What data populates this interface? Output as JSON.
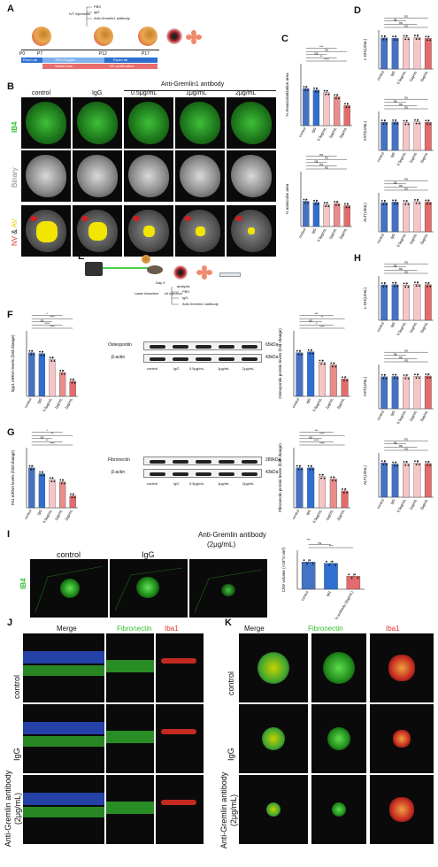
{
  "panels": {
    "A": "A",
    "B": "B",
    "C": "C",
    "D": "D",
    "E": "E",
    "F": "F",
    "G": "G",
    "H": "H",
    "I": "I",
    "J": "J",
    "K": "K"
  },
  "panelA": {
    "injections": [
      "PBS",
      "IgG",
      "Anti-Gremlin1 antibody"
    ],
    "ivt": "IVT injections",
    "days": [
      "P0",
      "P7",
      "P12",
      "P17"
    ],
    "top_bar": [
      "Room air",
      "75% Oxygen",
      "Room air"
    ],
    "bottom_bar": [
      "Vessel loss",
      "NV proliferation"
    ]
  },
  "panelB": {
    "antibody_header": "Anti-Gremlin1 antibody",
    "columns": [
      "control",
      "IgG",
      "0.5μg/mL",
      "1μg/mL",
      "2μg/mL"
    ],
    "rows": {
      "ib4": "IB4",
      "binary": "Binary",
      "nv": "NV",
      "amp": " & ",
      "av": "AV"
    }
  },
  "panelC": {
    "chart1_ylabel": "% revascularization area",
    "chart2_ylabel": "% avascular area",
    "sig1": [
      "****",
      "**",
      "ns",
      "ns",
      "***"
    ],
    "sig2": [
      "ns",
      "ns",
      "ns",
      "ns",
      "ns"
    ]
  },
  "panelD": {
    "ylabels": [
      "L-DH(U/mL)",
      "AST(U/mL)",
      "ALT(U/mL)"
    ],
    "ns": "ns"
  },
  "panelE": {
    "day0": "Day 0",
    "day7": "Day 7",
    "analysis": "analysis",
    "laser": "Laser induction",
    "ivt": "ivt injection",
    "pbs": "PBS",
    "igg": "IgG",
    "anti": "Anti-Gremlin1 antibody"
  },
  "panelF": {
    "ylabel": "Spp1 mRNA levels (fold change)",
    "sig": [
      "****",
      "****",
      "ns",
      "****",
      "*"
    ],
    "wb_labels": [
      "Osteopontin",
      "β-actin"
    ],
    "wb_sizes": [
      "65kDa",
      "43kDa"
    ],
    "lanes": [
      "control",
      "IgG",
      "0.5μg/mL",
      "1μg/mL",
      "2μg/mL"
    ],
    "quant_ylabel": "Osteopontin protein levels (fold change)",
    "quant_sig": [
      "****",
      "*",
      "ns",
      "**",
      "***"
    ]
  },
  "panelG": {
    "ylabel": "Fn1 mRNA levels (fold change)",
    "sig": [
      "****",
      "**",
      "ns",
      "**",
      "*"
    ],
    "wb_labels": [
      "Fibronectin",
      "β-actin"
    ],
    "wb_sizes": [
      "289kDa",
      "43kDa"
    ],
    "quant_ylabel": "Fibronectin protein levels (fold change)",
    "quant_sig": [
      "****",
      "****",
      "ns",
      "****",
      "***"
    ]
  },
  "panelH": {
    "ylabels": [
      "L-DH(U/mL)",
      "AST(U/mL)",
      "ALT(U/mL)"
    ],
    "ns": "ns"
  },
  "panelI": {
    "header": "Anti-Gremlin antibody",
    "header2": "(2μg/mL)",
    "columns": [
      "control",
      "IgG"
    ],
    "row": "IB4",
    "ylabel": "CNV volume (×10^4 um³)",
    "sig": [
      "***",
      "ns",
      "***"
    ],
    "xlabels": [
      "control",
      "IgG",
      "Anti-Gremlin antibody (2μg/mL)"
    ]
  },
  "panelJ": {
    "columns": [
      "Merge",
      "Fibronectin",
      "Iba1"
    ],
    "rows": [
      "control",
      "IgG",
      "Anti-Gremlin antibody (2μg/mL)"
    ]
  },
  "panelK": {
    "columns": [
      "Merge",
      "Fibronectin",
      "Iba1"
    ],
    "rows": [
      "control",
      "IgG",
      "Anti-Gremlin antibody (2μg/mL)"
    ]
  },
  "xticks5": [
    "control",
    "IgG",
    "0.5μg/mL",
    "1μg/mL",
    "2μg/mL"
  ],
  "colors": {
    "blue": "#4472c4",
    "blue2": "#2f6fd0",
    "pink": "#f6c6c6",
    "red": "#e36b6b",
    "green": "#2fbf2a",
    "yellow": "#f2e600"
  },
  "chart_data": [
    {
      "panel": "C",
      "type": "bar",
      "categories": [
        "control",
        "IgG",
        "0.5μg/mL",
        "1μg/mL",
        "2μg/mL"
      ],
      "values": [
        7.2,
        6.9,
        6.4,
        5.6,
        3.9
      ],
      "ylim": [
        0,
        12
      ]
    },
    {
      "panel": "C",
      "type": "bar",
      "categories": [
        "control",
        "IgG",
        "0.5μg/mL",
        "1μg/mL",
        "2μg/mL"
      ],
      "values": [
        23,
        22,
        20,
        21,
        19
      ],
      "ylim": [
        0,
        50
      ]
    },
    {
      "panel": "D",
      "type": "bar",
      "categories": [
        "control",
        "IgG",
        "0.5μg/mL",
        "1μg/mL",
        "2μg/mL"
      ],
      "values": [
        240,
        238,
        242,
        245,
        236
      ],
      "ylim": [
        0,
        300
      ]
    },
    {
      "panel": "D",
      "type": "bar",
      "categories": [
        "control",
        "IgG",
        "0.5μg/mL",
        "1μg/mL",
        "2μg/mL"
      ],
      "values": [
        145,
        146,
        143,
        147,
        144
      ],
      "ylim": [
        0,
        200
      ]
    },
    {
      "panel": "D",
      "type": "bar",
      "categories": [
        "control",
        "IgG",
        "0.5μg/mL",
        "1μg/mL",
        "2μg/mL"
      ],
      "values": [
        60,
        61,
        60,
        62,
        61
      ],
      "ylim": [
        0,
        80
      ]
    },
    {
      "panel": "F",
      "type": "bar",
      "categories": [
        "control",
        "IgG",
        "0.5μg/mL",
        "1μg/mL",
        "2μg/mL"
      ],
      "values": [
        1.0,
        0.98,
        0.85,
        0.55,
        0.35
      ],
      "ylim": [
        0,
        1.5
      ]
    },
    {
      "panel": "F",
      "type": "bar",
      "categories": [
        "control",
        "IgG",
        "0.5μg/mL",
        "1μg/mL",
        "2μg/mL"
      ],
      "values": [
        1.0,
        1.02,
        0.78,
        0.72,
        0.4
      ],
      "ylim": [
        0,
        1.5
      ]
    },
    {
      "panel": "G",
      "type": "bar",
      "categories": [
        "control",
        "IgG",
        "0.5μg/mL",
        "1μg/mL",
        "2μg/mL"
      ],
      "values": [
        1.0,
        0.85,
        0.7,
        0.65,
        0.3
      ],
      "ylim": [
        0,
        1.5
      ]
    },
    {
      "panel": "G",
      "type": "bar",
      "categories": [
        "control",
        "IgG",
        "0.5μg/mL",
        "1μg/mL",
        "2μg/mL"
      ],
      "values": [
        1.0,
        1.0,
        0.78,
        0.72,
        0.42
      ],
      "ylim": [
        0,
        1.5
      ]
    },
    {
      "panel": "H",
      "type": "bar",
      "categories": [
        "control",
        "IgG",
        "0.5μg/mL",
        "1μg/mL",
        "2μg/mL"
      ],
      "values": [
        240,
        242,
        238,
        245,
        241
      ],
      "ylim": [
        0,
        300
      ]
    },
    {
      "panel": "H",
      "type": "bar",
      "categories": [
        "control",
        "IgG",
        "0.5μg/mL",
        "1μg/mL",
        "2μg/mL"
      ],
      "values": [
        145,
        146,
        144,
        147,
        148
      ],
      "ylim": [
        0,
        200
      ]
    },
    {
      "panel": "H",
      "type": "bar",
      "categories": [
        "control",
        "IgG",
        "0.5μg/mL",
        "1μg/mL",
        "2μg/mL"
      ],
      "values": [
        62,
        60,
        61,
        62,
        61
      ],
      "ylim": [
        0,
        80
      ]
    },
    {
      "panel": "I",
      "type": "bar",
      "categories": [
        "control",
        "IgG",
        "Anti-Gremlin antibody (2μg/mL)"
      ],
      "values": [
        21,
        20,
        10
      ],
      "ylim": [
        0,
        30
      ]
    }
  ]
}
